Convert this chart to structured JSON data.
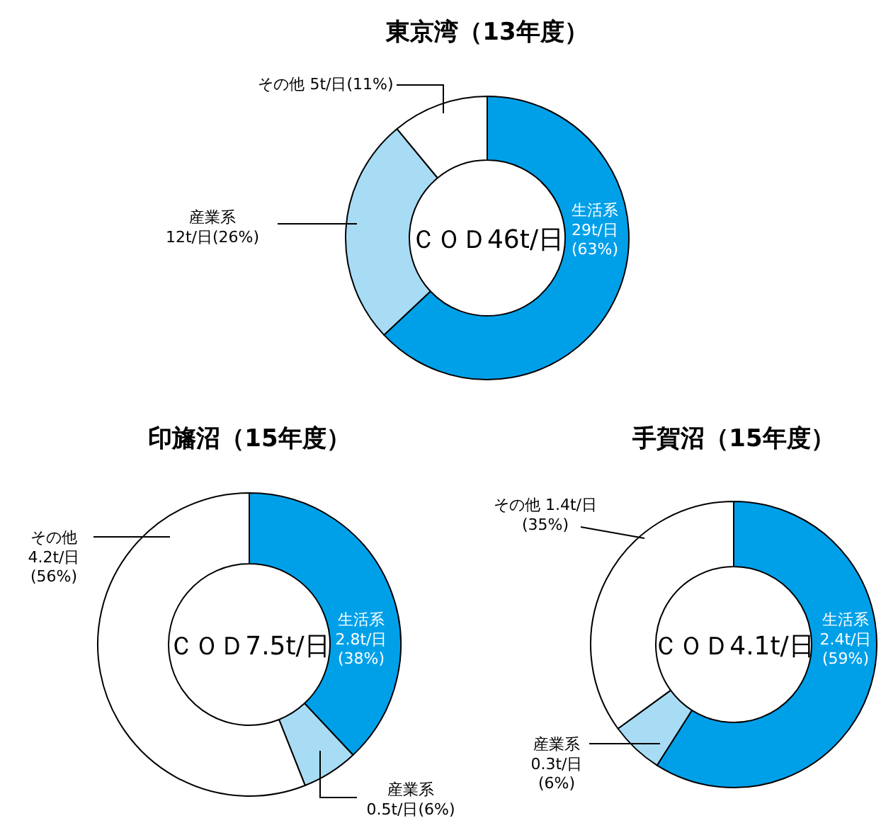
{
  "chart_data": [
    {
      "type": "donut",
      "title": "東京湾（13年度）",
      "categories": [
        "生活系",
        "産業系",
        "その他"
      ],
      "values": [
        63,
        26,
        11
      ],
      "value_labels": [
        "29t/日(63%)",
        "12t/日(26%)",
        "5t/日(11%)"
      ],
      "colors": [
        "#00a0e9",
        "#a8dcf5",
        "#ffffff"
      ],
      "annotations": [
        "ＣＯＤ46t/日"
      ]
    },
    {
      "type": "donut",
      "title": "印旛沼（15年度）",
      "categories": [
        "生活系",
        "産業系",
        "その他"
      ],
      "values": [
        38,
        6,
        56
      ],
      "value_labels": [
        "2.8t/日(38%)",
        "0.5t/日(6%)",
        "4.2t/日(56%)"
      ],
      "colors": [
        "#00a0e9",
        "#a8dcf5",
        "#ffffff"
      ],
      "annotations": [
        "ＣＯＤ7.5t/日"
      ]
    },
    {
      "type": "donut",
      "title": "手賀沼（15年度）",
      "categories": [
        "生活系",
        "産業系",
        "その他"
      ],
      "values": [
        59,
        6,
        35
      ],
      "value_labels": [
        "2.4t/日(59%)",
        "0.3t/日(6%)",
        "1.4t/日(35%)"
      ],
      "colors": [
        "#00a0e9",
        "#a8dcf5",
        "#ffffff"
      ],
      "annotations": [
        "ＣＯＤ4.1t/日"
      ]
    }
  ]
}
